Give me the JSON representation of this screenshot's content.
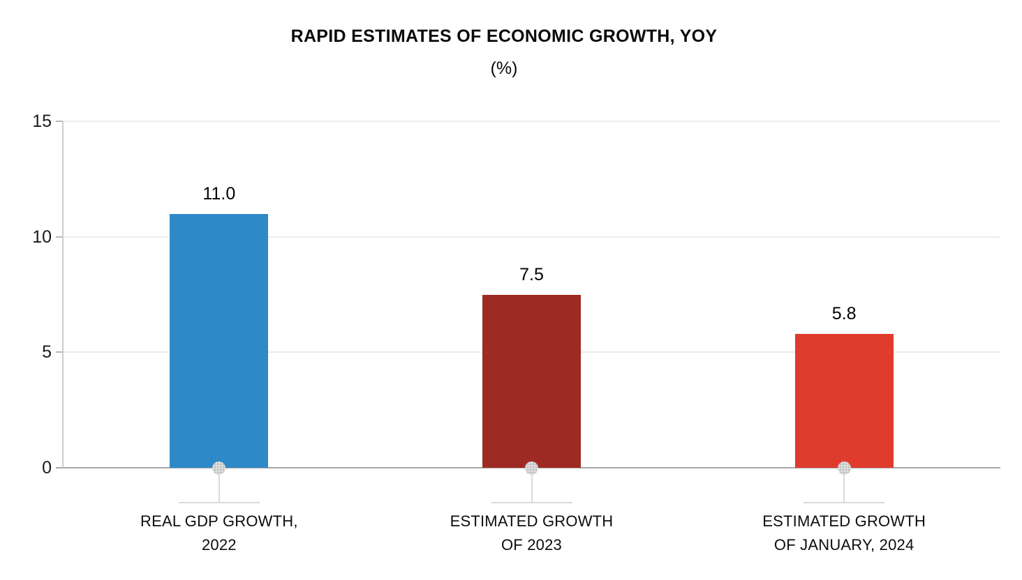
{
  "chart_data": {
    "type": "bar",
    "title": "RAPID ESTIMATES OF ECONOMIC GROWTH, YOY",
    "subtitle": "(%)",
    "categories": [
      "REAL GDP GROWTH,\n2022",
      "ESTIMATED GROWTH\nOF 2023",
      "ESTIMATED GROWTH\nOF JANUARY, 2024"
    ],
    "values": [
      11.0,
      7.5,
      5.8
    ],
    "value_labels": [
      "11.0",
      "7.5",
      "5.8"
    ],
    "bar_colors": [
      "#2d89c8",
      "#9e2b23",
      "#e03c2e"
    ],
    "ylim": [
      0,
      15
    ],
    "yticks": [
      0,
      5,
      10,
      15
    ],
    "xlabel": "",
    "ylabel": "",
    "grid": true,
    "legend": false
  },
  "colors": {
    "gridline": "#ececec",
    "baseline": "#a6a6a6",
    "axis_line": "#cccccc",
    "tick": "#b8b8b8",
    "marker_dot": "#c8c8c8",
    "leader_line": "#dadada",
    "text": "#000000"
  }
}
